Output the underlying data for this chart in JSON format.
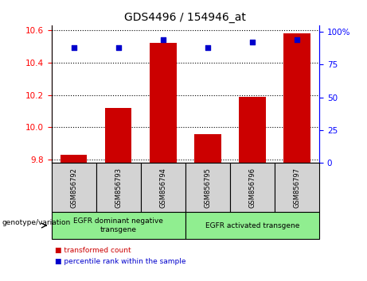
{
  "title": "GDS4496 / 154946_at",
  "categories": [
    "GSM856792",
    "GSM856793",
    "GSM856794",
    "GSM856795",
    "GSM856796",
    "GSM856797"
  ],
  "bar_values": [
    9.83,
    10.12,
    10.52,
    9.96,
    10.19,
    10.58
  ],
  "percentile_values": [
    88,
    88,
    94,
    88,
    92,
    94
  ],
  "bar_color": "#cc0000",
  "percentile_color": "#0000cc",
  "ylim_left": [
    9.78,
    10.63
  ],
  "ylim_right": [
    0,
    105
  ],
  "yticks_left": [
    9.8,
    10.0,
    10.2,
    10.4,
    10.6
  ],
  "yticks_right": [
    0,
    25,
    50,
    75,
    100
  ],
  "ytick_labels_right": [
    "0",
    "25",
    "50",
    "75",
    "100%"
  ],
  "group1_label": "EGFR dominant negative\ntransgene",
  "group2_label": "EGFR activated transgene",
  "group1_indices": [
    0,
    1,
    2
  ],
  "group2_indices": [
    3,
    4,
    5
  ],
  "group_bg_color": "#90EE90",
  "sample_bg_color": "#d3d3d3",
  "xlabel_genotype": "genotype/variation",
  "legend_red": "transformed count",
  "legend_blue": "percentile rank within the sample",
  "bar_width": 0.6,
  "base_value": 9.78
}
